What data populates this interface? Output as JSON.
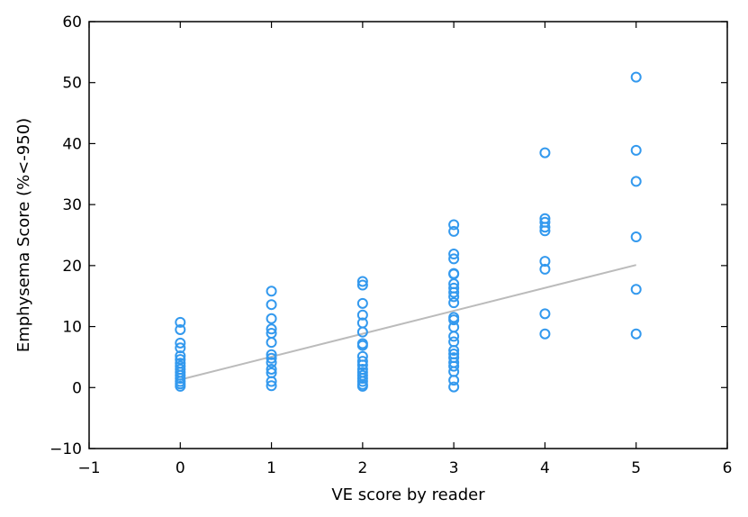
{
  "chart_data": {
    "type": "scatter",
    "xlabel": "VE score by reader",
    "ylabel": "Emphysema Score (%<-950)",
    "xlim": [
      -1,
      6
    ],
    "ylim": [
      -10,
      60
    ],
    "xticks": [
      -1,
      0,
      1,
      2,
      3,
      4,
      5,
      6
    ],
    "yticks": [
      -10,
      0,
      10,
      20,
      30,
      40,
      50,
      60
    ],
    "xtick_labels": [
      "−1",
      "0",
      "1",
      "2",
      "3",
      "4",
      "5",
      "6"
    ],
    "ytick_labels": [
      "−10",
      "0",
      "10",
      "20",
      "30",
      "40",
      "50",
      "60"
    ],
    "grid": false,
    "legend": "none",
    "marker_color": "#3399ee",
    "trend_color": "#bbbbbb",
    "points": [
      {
        "x": 0,
        "y": 10.7
      },
      {
        "x": 0,
        "y": 9.5
      },
      {
        "x": 0,
        "y": 7.3
      },
      {
        "x": 0,
        "y": 6.5
      },
      {
        "x": 0,
        "y": 5.2
      },
      {
        "x": 0,
        "y": 4.6
      },
      {
        "x": 0,
        "y": 4.0
      },
      {
        "x": 0,
        "y": 3.5
      },
      {
        "x": 0,
        "y": 3.0
      },
      {
        "x": 0,
        "y": 2.5
      },
      {
        "x": 0,
        "y": 2.0
      },
      {
        "x": 0,
        "y": 1.5
      },
      {
        "x": 0,
        "y": 1.0
      },
      {
        "x": 0,
        "y": 0.6
      },
      {
        "x": 0,
        "y": 0.2
      },
      {
        "x": 1,
        "y": 15.8
      },
      {
        "x": 1,
        "y": 13.6
      },
      {
        "x": 1,
        "y": 11.3
      },
      {
        "x": 1,
        "y": 9.6
      },
      {
        "x": 1,
        "y": 8.9
      },
      {
        "x": 1,
        "y": 7.4
      },
      {
        "x": 1,
        "y": 5.4
      },
      {
        "x": 1,
        "y": 4.8
      },
      {
        "x": 1,
        "y": 4.1
      },
      {
        "x": 1,
        "y": 3.0
      },
      {
        "x": 1,
        "y": 2.4
      },
      {
        "x": 1,
        "y": 1.0
      },
      {
        "x": 1,
        "y": 0.3
      },
      {
        "x": 2,
        "y": 17.4
      },
      {
        "x": 2,
        "y": 16.8
      },
      {
        "x": 2,
        "y": 13.8
      },
      {
        "x": 2,
        "y": 11.9
      },
      {
        "x": 2,
        "y": 10.6
      },
      {
        "x": 2,
        "y": 9.1
      },
      {
        "x": 2,
        "y": 7.2
      },
      {
        "x": 2,
        "y": 6.9
      },
      {
        "x": 2,
        "y": 5.1
      },
      {
        "x": 2,
        "y": 4.3
      },
      {
        "x": 2,
        "y": 3.7
      },
      {
        "x": 2,
        "y": 3.0
      },
      {
        "x": 2,
        "y": 2.5
      },
      {
        "x": 2,
        "y": 2.0
      },
      {
        "x": 2,
        "y": 1.5
      },
      {
        "x": 2,
        "y": 1.0
      },
      {
        "x": 2,
        "y": 0.5
      },
      {
        "x": 2,
        "y": 0.2
      },
      {
        "x": 3,
        "y": 26.7
      },
      {
        "x": 3,
        "y": 25.6
      },
      {
        "x": 3,
        "y": 21.9
      },
      {
        "x": 3,
        "y": 21.1
      },
      {
        "x": 3,
        "y": 18.7
      },
      {
        "x": 3,
        "y": 18.6
      },
      {
        "x": 3,
        "y": 17.0
      },
      {
        "x": 3,
        "y": 16.3
      },
      {
        "x": 3,
        "y": 15.6
      },
      {
        "x": 3,
        "y": 14.9
      },
      {
        "x": 3,
        "y": 13.9
      },
      {
        "x": 3,
        "y": 11.5
      },
      {
        "x": 3,
        "y": 11.1
      },
      {
        "x": 3,
        "y": 9.9
      },
      {
        "x": 3,
        "y": 8.4
      },
      {
        "x": 3,
        "y": 7.5
      },
      {
        "x": 3,
        "y": 6.1
      },
      {
        "x": 3,
        "y": 5.5
      },
      {
        "x": 3,
        "y": 4.9
      },
      {
        "x": 3,
        "y": 4.1
      },
      {
        "x": 3,
        "y": 3.5
      },
      {
        "x": 3,
        "y": 2.6
      },
      {
        "x": 3,
        "y": 1.2
      },
      {
        "x": 3,
        "y": 0.1
      },
      {
        "x": 4,
        "y": 38.5
      },
      {
        "x": 4,
        "y": 27.7
      },
      {
        "x": 4,
        "y": 27.1
      },
      {
        "x": 4,
        "y": 26.3
      },
      {
        "x": 4,
        "y": 25.7
      },
      {
        "x": 4,
        "y": 20.7
      },
      {
        "x": 4,
        "y": 19.4
      },
      {
        "x": 4,
        "y": 12.1
      },
      {
        "x": 4,
        "y": 8.8
      },
      {
        "x": 5,
        "y": 50.9
      },
      {
        "x": 5,
        "y": 38.9
      },
      {
        "x": 5,
        "y": 33.8
      },
      {
        "x": 5,
        "y": 24.7
      },
      {
        "x": 5,
        "y": 16.1
      },
      {
        "x": 5,
        "y": 8.8
      }
    ],
    "trendline": {
      "x": [
        0,
        5
      ],
      "y": [
        1.3,
        20.1
      ]
    }
  }
}
